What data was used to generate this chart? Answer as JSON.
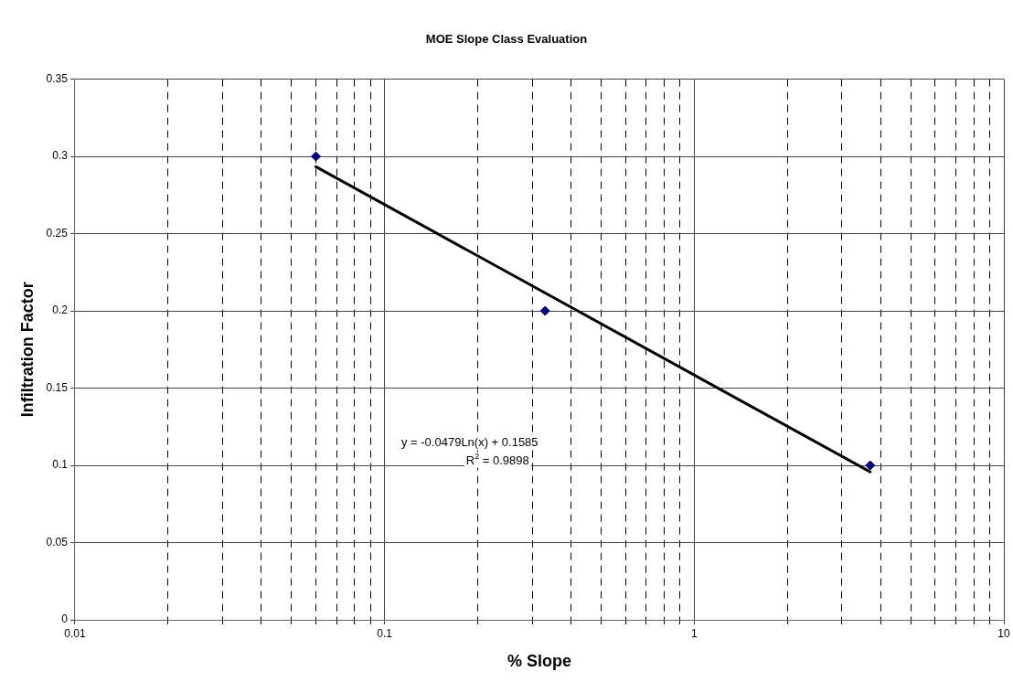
{
  "chart_data": {
    "type": "scatter",
    "title": "MOE Slope Class Evaluation",
    "xlabel": "% Slope",
    "ylabel": "Infiltration Factor",
    "series": [
      {
        "color": "#000080",
        "marker": "diamond",
        "x": [
          0.06,
          0.33,
          3.7
        ],
        "values": [
          0.3,
          0.2,
          0.1
        ]
      },
      {
        "type": "line",
        "color": "#000000",
        "marker": "none",
        "line_style": "solid",
        "x": [
          0.06,
          3.7
        ],
        "values": [
          0.2933,
          0.0958
        ]
      }
    ],
    "log": "x",
    "xlim": [
      0.01,
      10
    ],
    "xticks": [
      0.01,
      {
        "value": 0.02,
        "label": null
      },
      {
        "value": 0.03,
        "label": null
      },
      {
        "value": 0.04,
        "label": null
      },
      {
        "value": 0.05,
        "label": null
      },
      {
        "value": 0.06,
        "label": null
      },
      {
        "value": 0.07,
        "label": null
      },
      {
        "value": 0.08,
        "label": null
      },
      {
        "value": 0.09,
        "label": null
      },
      0.1,
      {
        "value": 0.2,
        "label": null
      },
      {
        "value": 0.3,
        "label": null
      },
      {
        "value": 0.4,
        "label": null
      },
      {
        "value": 0.5,
        "label": null
      },
      {
        "value": 0.6,
        "label": null
      },
      {
        "value": 0.7,
        "label": null
      },
      {
        "value": 0.8,
        "label": null
      },
      {
        "value": 0.9,
        "label": null
      },
      1,
      {
        "value": 2,
        "label": null
      },
      {
        "value": 3,
        "label": null
      },
      {
        "value": 4,
        "label": null
      },
      {
        "value": 5,
        "label": null
      },
      {
        "value": 6,
        "label": null
      },
      {
        "value": 7,
        "label": null
      },
      {
        "value": 8,
        "label": null
      },
      {
        "value": 9,
        "label": null
      },
      10
    ],
    "ylim": [
      0,
      0.35
    ],
    "yticks": [
      0,
      0.05,
      0.1,
      0.15,
      0.2,
      0.25,
      0.3,
      0.35
    ],
    "grid": true,
    "legend": false,
    "annotations": [
      "y = -0.0479Ln(x) + 0.1585",
      "R$^{2}$ = 0.9898"
    ]
  }
}
